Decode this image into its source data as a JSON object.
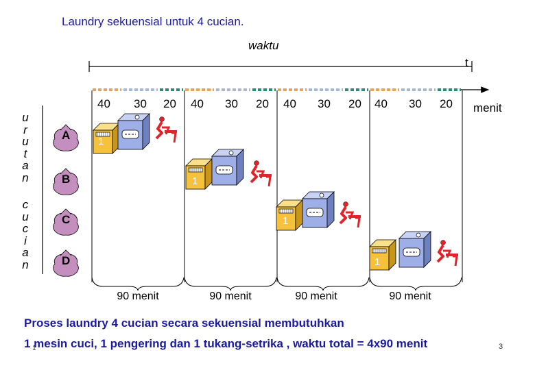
{
  "title": "Laundry sekuensial  untuk  4 cucian.",
  "time_axis": {
    "label": "waktu",
    "end_label": "t"
  },
  "ticks": [
    "40",
    "30",
    "20",
    "40",
    "30",
    "20",
    "40",
    "30",
    "20",
    "40",
    "30",
    "20"
  ],
  "time_unit": "menit",
  "left_label_top": [
    "u",
    "r",
    "u",
    "t",
    "a",
    "n"
  ],
  "left_label_bottom": [
    "c",
    "u",
    "c",
    "i",
    "a",
    "n"
  ],
  "loads": [
    {
      "letter": "A",
      "stage_number": "1"
    },
    {
      "letter": "B",
      "stage_number": "1"
    },
    {
      "letter": "C",
      "stage_number": "1"
    },
    {
      "letter": "D",
      "stage_number": "1"
    }
  ],
  "durations": [
    "90 menit",
    "90 menit",
    "90 menit",
    "90 menit"
  ],
  "footer": {
    "line1": "Proses laundry 4 cucian secara sekuensial membutuhkan",
    "line2_prefix": "1 mesin cuci, 1 pengering dan 1 tukang-setrika , waktu total = ",
    "line2_value": "4x90 menit",
    "page_small": "1",
    "slide_number": "3"
  },
  "colors": {
    "title": "#1a1aa0",
    "dash_orange": "#e8a35a",
    "dash_blue": "#a8b8d8",
    "dash_teal": "#2a8a78",
    "bag": "#c48fbf",
    "washer_yellow": "#f6c23c",
    "dryer_blue": "#9eaee6",
    "iron_red": "#e0242a"
  }
}
